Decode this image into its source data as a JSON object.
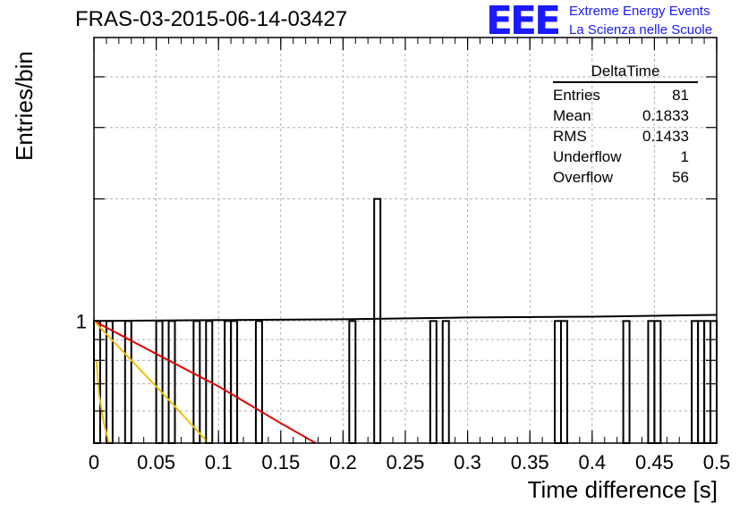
{
  "header": {
    "run_title": "FRAS-03-2015-06-14-03427",
    "logo_text": "EEE",
    "logo_line1": "Extreme Energy Events",
    "logo_line2": "La Scienza nelle Scuole",
    "logo_color": "#1a1aff"
  },
  "stats_box": {
    "title": "DeltaTime",
    "rows": [
      {
        "label": "Entries",
        "value": "81"
      },
      {
        "label": "Mean",
        "value": "0.1833"
      },
      {
        "label": "RMS",
        "value": "0.1433"
      },
      {
        "label": "Underflow",
        "value": "1"
      },
      {
        "label": "Overflow",
        "value": "56"
      }
    ]
  },
  "chart_data": {
    "type": "bar",
    "title": "FRAS-03-2015-06-14-03427",
    "xlabel": "Time difference [s]",
    "ylabel": "Entries/bin",
    "xlim": [
      0,
      0.5
    ],
    "ylim_log": [
      0.5,
      5.0
    ],
    "log_y": true,
    "grid": true,
    "x_ticks": [
      "0",
      "0.05",
      "0.1",
      "0.15",
      "0.2",
      "0.25",
      "0.3",
      "0.35",
      "0.4",
      "0.45",
      "0.5"
    ],
    "y_ticks": [
      "1"
    ],
    "bin_width": 0.005,
    "bins": [
      {
        "x": 0.0,
        "count": 1
      },
      {
        "x": 0.01,
        "count": 1
      },
      {
        "x": 0.025,
        "count": 1
      },
      {
        "x": 0.05,
        "count": 1
      },
      {
        "x": 0.06,
        "count": 1
      },
      {
        "x": 0.08,
        "count": 1
      },
      {
        "x": 0.09,
        "count": 1
      },
      {
        "x": 0.105,
        "count": 1
      },
      {
        "x": 0.11,
        "count": 1
      },
      {
        "x": 0.13,
        "count": 1
      },
      {
        "x": 0.205,
        "count": 1
      },
      {
        "x": 0.225,
        "count": 2
      },
      {
        "x": 0.27,
        "count": 1
      },
      {
        "x": 0.28,
        "count": 1
      },
      {
        "x": 0.37,
        "count": 1
      },
      {
        "x": 0.375,
        "count": 1
      },
      {
        "x": 0.425,
        "count": 1
      },
      {
        "x": 0.445,
        "count": 1
      },
      {
        "x": 0.45,
        "count": 1
      },
      {
        "x": 0.48,
        "count": 1
      },
      {
        "x": 0.485,
        "count": 1
      },
      {
        "x": 0.49,
        "count": 1
      },
      {
        "x": 0.495,
        "count": 1
      }
    ],
    "fits": [
      {
        "color": "#000000",
        "points": [
          [
            0.0,
            1.0
          ],
          [
            0.1,
            1.005
          ],
          [
            0.2,
            1.01
          ],
          [
            0.3,
            1.02
          ],
          [
            0.4,
            1.025
          ],
          [
            0.5,
            1.035
          ]
        ]
      },
      {
        "color": "#e00000",
        "points": [
          [
            0.0,
            1.0
          ],
          [
            0.05,
            0.83
          ],
          [
            0.1,
            0.69
          ],
          [
            0.15,
            0.56
          ],
          [
            0.178,
            0.5
          ]
        ]
      },
      {
        "color": "#f0c000",
        "points": [
          [
            0.0,
            1.0
          ],
          [
            0.03,
            0.8
          ],
          [
            0.06,
            0.64
          ],
          [
            0.092,
            0.5
          ]
        ]
      },
      {
        "color": "#f0c000",
        "points": [
          [
            0.002,
            0.8
          ],
          [
            0.004,
            0.66
          ],
          [
            0.008,
            0.56
          ],
          [
            0.012,
            0.5
          ]
        ]
      }
    ]
  }
}
